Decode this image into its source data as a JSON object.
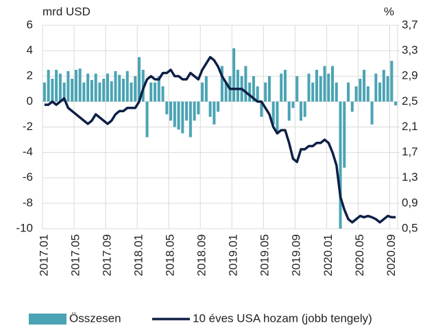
{
  "chart_data": {
    "type": "bar_line",
    "y_label": "mrd USD",
    "y2_label": "%",
    "categories": [
      "2017.01",
      null,
      null,
      null,
      null,
      null,
      null,
      null,
      "2017.05",
      null,
      null,
      null,
      null,
      null,
      null,
      null,
      "2017.09",
      null,
      null,
      null,
      null,
      null,
      null,
      null,
      "2018.01",
      null,
      null,
      null,
      null,
      null,
      null,
      null,
      "2018.05",
      null,
      null,
      null,
      null,
      null,
      null,
      null,
      "2018.09",
      null,
      null,
      null,
      null,
      null,
      null,
      null,
      "2019.01",
      null,
      null,
      null,
      null,
      null,
      null,
      null,
      "2019.05",
      null,
      null,
      null,
      null,
      null,
      null,
      null,
      "2019.09",
      null,
      null,
      null,
      null,
      null,
      null,
      null,
      "2020.01",
      null,
      null,
      null,
      null,
      null,
      null,
      null,
      "2020.05",
      null,
      null,
      null,
      null,
      null,
      null,
      null,
      "2020.09",
      null
    ],
    "series": [
      {
        "name": "Összesen",
        "color": "#4aa4b4",
        "kind": "bar",
        "values": [
          1.5,
          2.5,
          1.8,
          2.5,
          2.2,
          1.5,
          2.4,
          1.8,
          2.5,
          2.6,
          1.5,
          2.2,
          1.7,
          2.2,
          1.5,
          1.8,
          2.2,
          1.6,
          2.4,
          2.1,
          1.8,
          2.4,
          1.5,
          2.0,
          3.5,
          2.5,
          -2.8,
          1.5,
          1.5,
          2.0,
          1.2,
          -1.0,
          -1.5,
          -2.0,
          -2.2,
          -2.5,
          -1.5,
          -2.8,
          -1.5,
          -1.0,
          1.5,
          2.0,
          -1.2,
          -1.8,
          -0.8,
          2.8,
          1.5,
          2.0,
          4.2,
          2.5,
          2.0,
          2.8,
          1.5,
          2.0,
          1.2,
          -1.2,
          1.5,
          2.0,
          -1.8,
          -2.5,
          2.2,
          2.5,
          -1.5,
          -0.5,
          2.0,
          -1.5,
          -1.2,
          2.2,
          1.5,
          2.5,
          2.0,
          2.8,
          2.2,
          2.8,
          1.5,
          -10,
          -5.2,
          1.5,
          -0.8,
          1.2,
          1.8,
          2.5,
          1.2,
          -1.8,
          2.2,
          1.5,
          2.5,
          2.0,
          3.2,
          -0.3
        ]
      },
      {
        "name": "10 éves USA hozam (jobb tengely)",
        "color": "#0d1f45",
        "kind": "line",
        "axis": "y2",
        "values": [
          2.45,
          2.45,
          2.5,
          2.45,
          2.5,
          2.55,
          2.4,
          2.35,
          2.3,
          2.25,
          2.2,
          2.15,
          2.2,
          2.3,
          2.25,
          2.2,
          2.15,
          2.2,
          2.3,
          2.35,
          2.35,
          2.4,
          2.4,
          2.4,
          2.5,
          2.7,
          2.85,
          2.9,
          2.85,
          2.85,
          2.95,
          2.95,
          3.0,
          2.9,
          2.9,
          2.85,
          2.85,
          2.95,
          2.9,
          2.85,
          3.0,
          3.1,
          3.2,
          3.15,
          3.05,
          2.9,
          2.8,
          2.7,
          2.7,
          2.7,
          2.7,
          2.65,
          2.6,
          2.55,
          2.5,
          2.5,
          2.4,
          2.3,
          2.1,
          2.0,
          2.05,
          2.05,
          1.85,
          1.6,
          1.55,
          1.75,
          1.75,
          1.8,
          1.8,
          1.85,
          1.85,
          1.9,
          1.85,
          1.7,
          1.5,
          1.0,
          0.8,
          0.65,
          0.6,
          0.65,
          0.7,
          0.68,
          0.7,
          0.68,
          0.65,
          0.6,
          0.65,
          0.7,
          0.68,
          0.68
        ]
      }
    ],
    "ylim": [
      -10,
      6
    ],
    "yticks": [
      6,
      4,
      2,
      0,
      -2,
      -4,
      -6,
      -8,
      -10
    ],
    "y2lim": [
      0.5,
      3.7
    ],
    "y2ticks": [
      {
        "value": 3.7,
        "label": "3,7"
      },
      {
        "value": 3.3,
        "label": "3,3"
      },
      {
        "value": 2.9,
        "label": "2,9"
      },
      {
        "value": 2.5,
        "label": "2,5"
      },
      {
        "value": 2.1,
        "label": "2,1"
      },
      {
        "value": 1.7,
        "label": "1,7"
      },
      {
        "value": 1.3,
        "label": "1,3"
      },
      {
        "value": 0.9,
        "label": "0,9"
      },
      {
        "value": 0.5,
        "label": "0,5"
      }
    ],
    "grid": true,
    "legend": "bottom"
  }
}
